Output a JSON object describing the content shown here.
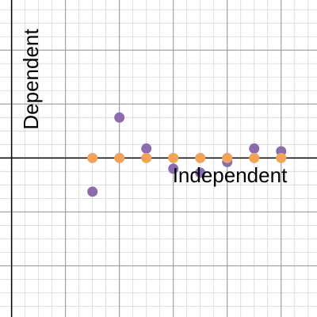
{
  "chart_data": {
    "type": "scatter",
    "xlabel": "Independent",
    "ylabel": "Dependent",
    "xlim": [
      -0.43,
      11.33
    ],
    "ylim": [
      -5.9,
      5.86
    ],
    "grid": true,
    "x_axis_at_y": 0,
    "y_axis_at_x": 0,
    "series": [
      {
        "color": "#8c6bb1",
        "points": [
          {
            "x": 3,
            "y": -1.25
          },
          {
            "x": 4,
            "y": 1.5
          },
          {
            "x": 5,
            "y": 0.35
          },
          {
            "x": 6,
            "y": -0.4
          },
          {
            "x": 7,
            "y": -0.55
          },
          {
            "x": 8,
            "y": -0.15
          },
          {
            "x": 9,
            "y": 0.35
          },
          {
            "x": 10,
            "y": 0.25
          }
        ]
      },
      {
        "color": "#f4a258",
        "points": [
          {
            "x": 3,
            "y": 0
          },
          {
            "x": 4,
            "y": 0
          },
          {
            "x": 5,
            "y": 0
          },
          {
            "x": 6,
            "y": 0
          },
          {
            "x": 7,
            "y": 0
          },
          {
            "x": 8,
            "y": 0
          },
          {
            "x": 9,
            "y": 0
          },
          {
            "x": 10,
            "y": 0
          }
        ]
      }
    ]
  }
}
